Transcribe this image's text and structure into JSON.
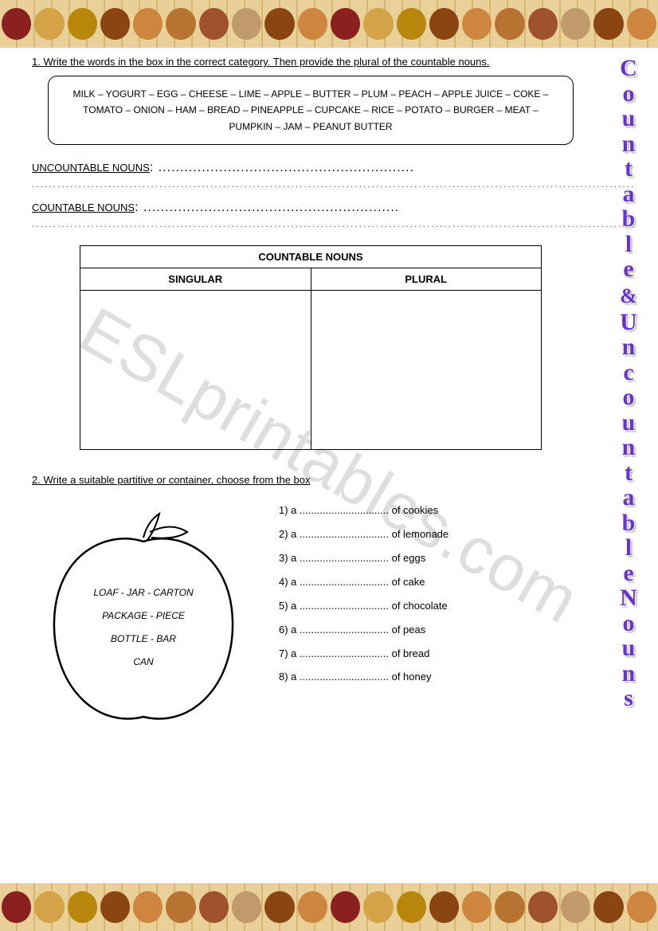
{
  "watermark": "ESLprintables.com",
  "vertical_title": [
    "C",
    "o",
    "u",
    "n",
    "t",
    "a",
    "b",
    "l",
    "e",
    "&",
    "U",
    "n",
    "c",
    "o",
    "u",
    "n",
    "t",
    "a",
    "b",
    "l",
    "e",
    "N",
    "o",
    "u",
    "n",
    "s"
  ],
  "exercise1": {
    "instruction": "1. Write the words in the box in the correct category. Then provide the plural of the countable nouns.",
    "words": "MILK – YOGURT – EGG – CHEESE – LIME – APPLE – BUTTER – PLUM – PEACH – APPLE JUICE – COKE – TOMATO – ONION – HAM – BREAD – PINEAPPLE – CUPCAKE – RICE – POTATO – BURGER – MEAT – PUMPKIN – JAM – PEANUT BUTTER",
    "uncountable_label": "UNCOUNTABLE NOUNS",
    "countable_label": "COUNTABLE NOUNS",
    "table_title": "COUNTABLE NOUNS",
    "col_singular": "SINGULAR",
    "col_plural": "PLURAL"
  },
  "exercise2": {
    "instruction": "2. Write a suitable partitive or container, choose from the box",
    "apple_words": [
      "LOAF  -  JAR  -  CARTON",
      "PACKAGE  -  PIECE",
      "BOTTLE  -  BAR",
      "CAN"
    ],
    "items": [
      {
        "num": "1)",
        "suffix": "of cookies"
      },
      {
        "num": "2)",
        "suffix": "of lemonade"
      },
      {
        "num": "3)",
        "suffix": "of eggs"
      },
      {
        "num": "4)",
        "suffix": "of cake"
      },
      {
        "num": "5)",
        "suffix": "of chocolate"
      },
      {
        "num": "6)",
        "suffix": "of peas"
      },
      {
        "num": "7)",
        "suffix": "of bread"
      },
      {
        "num": "8)",
        "suffix": "of honey"
      }
    ]
  },
  "border": {
    "food_colors_1": [
      "#8b2020",
      "#d4a247",
      "#b8860b",
      "#8b4513",
      "#cd853f",
      "#b87333",
      "#a0522d",
      "#c19a6b",
      "#8b4513",
      "#cd853f"
    ],
    "food_colors_2": [
      "#8b2020",
      "#d4a247",
      "#b8860b",
      "#8b4513",
      "#cd853f",
      "#b87333",
      "#a0522d",
      "#c19a6b",
      "#8b4513",
      "#cd853f"
    ]
  },
  "colors": {
    "title_color": "#6633cc",
    "watermark_color": "rgba(160,160,160,0.35)",
    "border_table_bg": "#e8d098"
  }
}
